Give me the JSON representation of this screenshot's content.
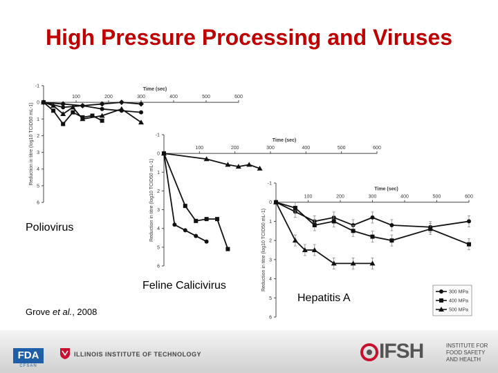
{
  "slide": {
    "title": "High Pressure Processing and Viruses",
    "label_polio": "Poliovirus",
    "label_fcv": "Feline Calicivirus",
    "label_hav": "Hepatitis A",
    "citation": "Grove et al., 2008"
  },
  "footer": {
    "fda_logo": "FDA",
    "cfsan": "CFSAN",
    "iit": "ILLINOIS INSTITUTE OF TECHNOLOGY",
    "ifsh": "IFSH",
    "ifsh_sub": [
      "INSTITUTE FOR",
      "FOOD SAFETY",
      "AND HEALTH"
    ]
  },
  "colors": {
    "title": "#c00000"
  },
  "chart_data": [
    {
      "type": "line",
      "name": "Poliovirus",
      "xlabel": "Time (sec)",
      "ylabel": "Reduction in titre (log10 TCID50 mL-1)",
      "xlim": [
        0,
        600
      ],
      "ylim": [
        -1,
        6
      ],
      "xticks": [
        100,
        200,
        300,
        400,
        500,
        600
      ],
      "yticks": [
        -1,
        0,
        1,
        2,
        3,
        4,
        5,
        6
      ],
      "series": [
        {
          "marker": "circle",
          "x": [
            0,
            60,
            120,
            180,
            240,
            300
          ],
          "values": [
            0,
            0.3,
            0.2,
            0.4,
            0.5,
            0.6
          ]
        },
        {
          "marker": "square",
          "x": [
            0,
            30,
            60,
            90,
            120,
            150,
            180
          ],
          "values": [
            0,
            0.5,
            1.3,
            0.6,
            0.9,
            0.8,
            1.1
          ]
        },
        {
          "marker": "triangle",
          "x": [
            0,
            30,
            60,
            90,
            120,
            180,
            240,
            300
          ],
          "values": [
            0,
            0.2,
            0.7,
            0.3,
            1.0,
            0.8,
            0.4,
            1.2
          ]
        },
        {
          "marker": "diamond",
          "x": [
            0,
            60,
            120,
            180,
            240,
            300
          ],
          "values": [
            0,
            0.1,
            0.2,
            0.1,
            0.0,
            0.1
          ]
        }
      ]
    },
    {
      "type": "line",
      "name": "Feline Calicivirus",
      "xlabel": "Time (sec)",
      "ylabel": "Reduction in titre (log10 TCID50 mL-1)",
      "xlim": [
        0,
        600
      ],
      "ylim": [
        -1,
        6
      ],
      "xticks": [
        100,
        200,
        300,
        400,
        500,
        600
      ],
      "yticks": [
        -1,
        0,
        1,
        2,
        3,
        4,
        5,
        6
      ],
      "series": [
        {
          "marker": "triangle",
          "x": [
            0,
            120,
            180,
            210,
            240,
            270
          ],
          "values": [
            0,
            0.3,
            0.6,
            0.7,
            0.6,
            0.8
          ]
        },
        {
          "marker": "square",
          "x": [
            0,
            60,
            90,
            120,
            150,
            180
          ],
          "values": [
            0,
            2.8,
            3.6,
            3.5,
            3.5,
            5.1
          ]
        },
        {
          "marker": "circle",
          "x": [
            0,
            30,
            60,
            90,
            120
          ],
          "values": [
            0,
            3.8,
            4.1,
            4.4,
            4.7
          ]
        }
      ]
    },
    {
      "type": "line",
      "name": "Hepatitis A",
      "xlabel": "Time (sec)",
      "ylabel": "Reduction in titre (log10 TCID50 mL-1)",
      "xlim": [
        0,
        600
      ],
      "ylim": [
        -1,
        6
      ],
      "xticks": [
        100,
        200,
        300,
        400,
        500,
        600
      ],
      "yticks": [
        -1,
        0,
        1,
        2,
        3,
        4,
        5,
        6
      ],
      "legend": "bottom-right",
      "series": [
        {
          "name": "300 MPa",
          "marker": "circle",
          "x": [
            0,
            60,
            120,
            180,
            240,
            300,
            360,
            480,
            600
          ],
          "values": [
            0,
            0.5,
            1.0,
            0.8,
            1.2,
            0.8,
            1.2,
            1.3,
            1.0
          ]
        },
        {
          "name": "400 MPa",
          "marker": "square",
          "x": [
            0,
            60,
            120,
            180,
            240,
            300,
            360,
            480,
            600
          ],
          "values": [
            0,
            0.3,
            1.2,
            1.0,
            1.5,
            1.8,
            2.0,
            1.4,
            2.2
          ]
        },
        {
          "name": "500 MPa",
          "marker": "triangle",
          "x": [
            0,
            60,
            90,
            120,
            180,
            240,
            300
          ],
          "values": [
            0,
            2.0,
            2.5,
            2.5,
            3.2,
            3.2,
            3.2
          ]
        }
      ]
    }
  ]
}
